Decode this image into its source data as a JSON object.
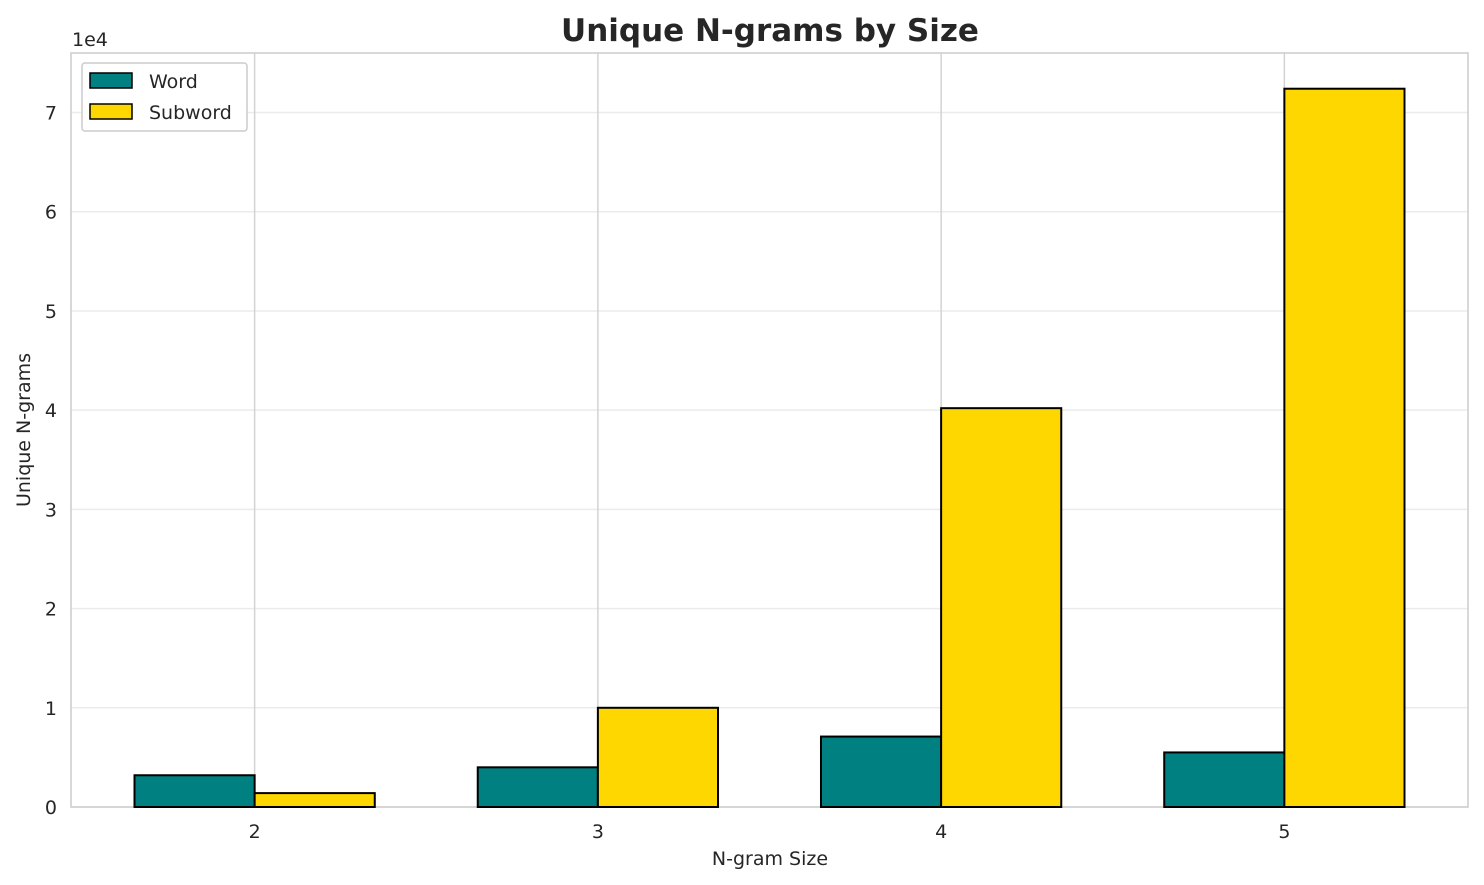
{
  "chart_data": {
    "type": "bar",
    "title": "Unique N-grams by Size",
    "xlabel": "N-gram Size",
    "ylabel": "Unique N-grams",
    "offset_label": "1e4",
    "categories": [
      "2",
      "3",
      "4",
      "5"
    ],
    "series": [
      {
        "name": "Word",
        "color": "#008080",
        "values": [
          3200,
          4000,
          7100,
          5500
        ]
      },
      {
        "name": "Subword",
        "color": "#FFD700",
        "values": [
          1400,
          10000,
          40200,
          72400
        ]
      }
    ],
    "ylim": [
      0,
      76000
    ],
    "yticks": [
      0,
      10000,
      20000,
      30000,
      40000,
      50000,
      60000,
      70000
    ],
    "ytick_labels": [
      "0",
      "1",
      "2",
      "3",
      "4",
      "5",
      "6",
      "7"
    ],
    "grid": true,
    "legend_position": "top-left"
  }
}
